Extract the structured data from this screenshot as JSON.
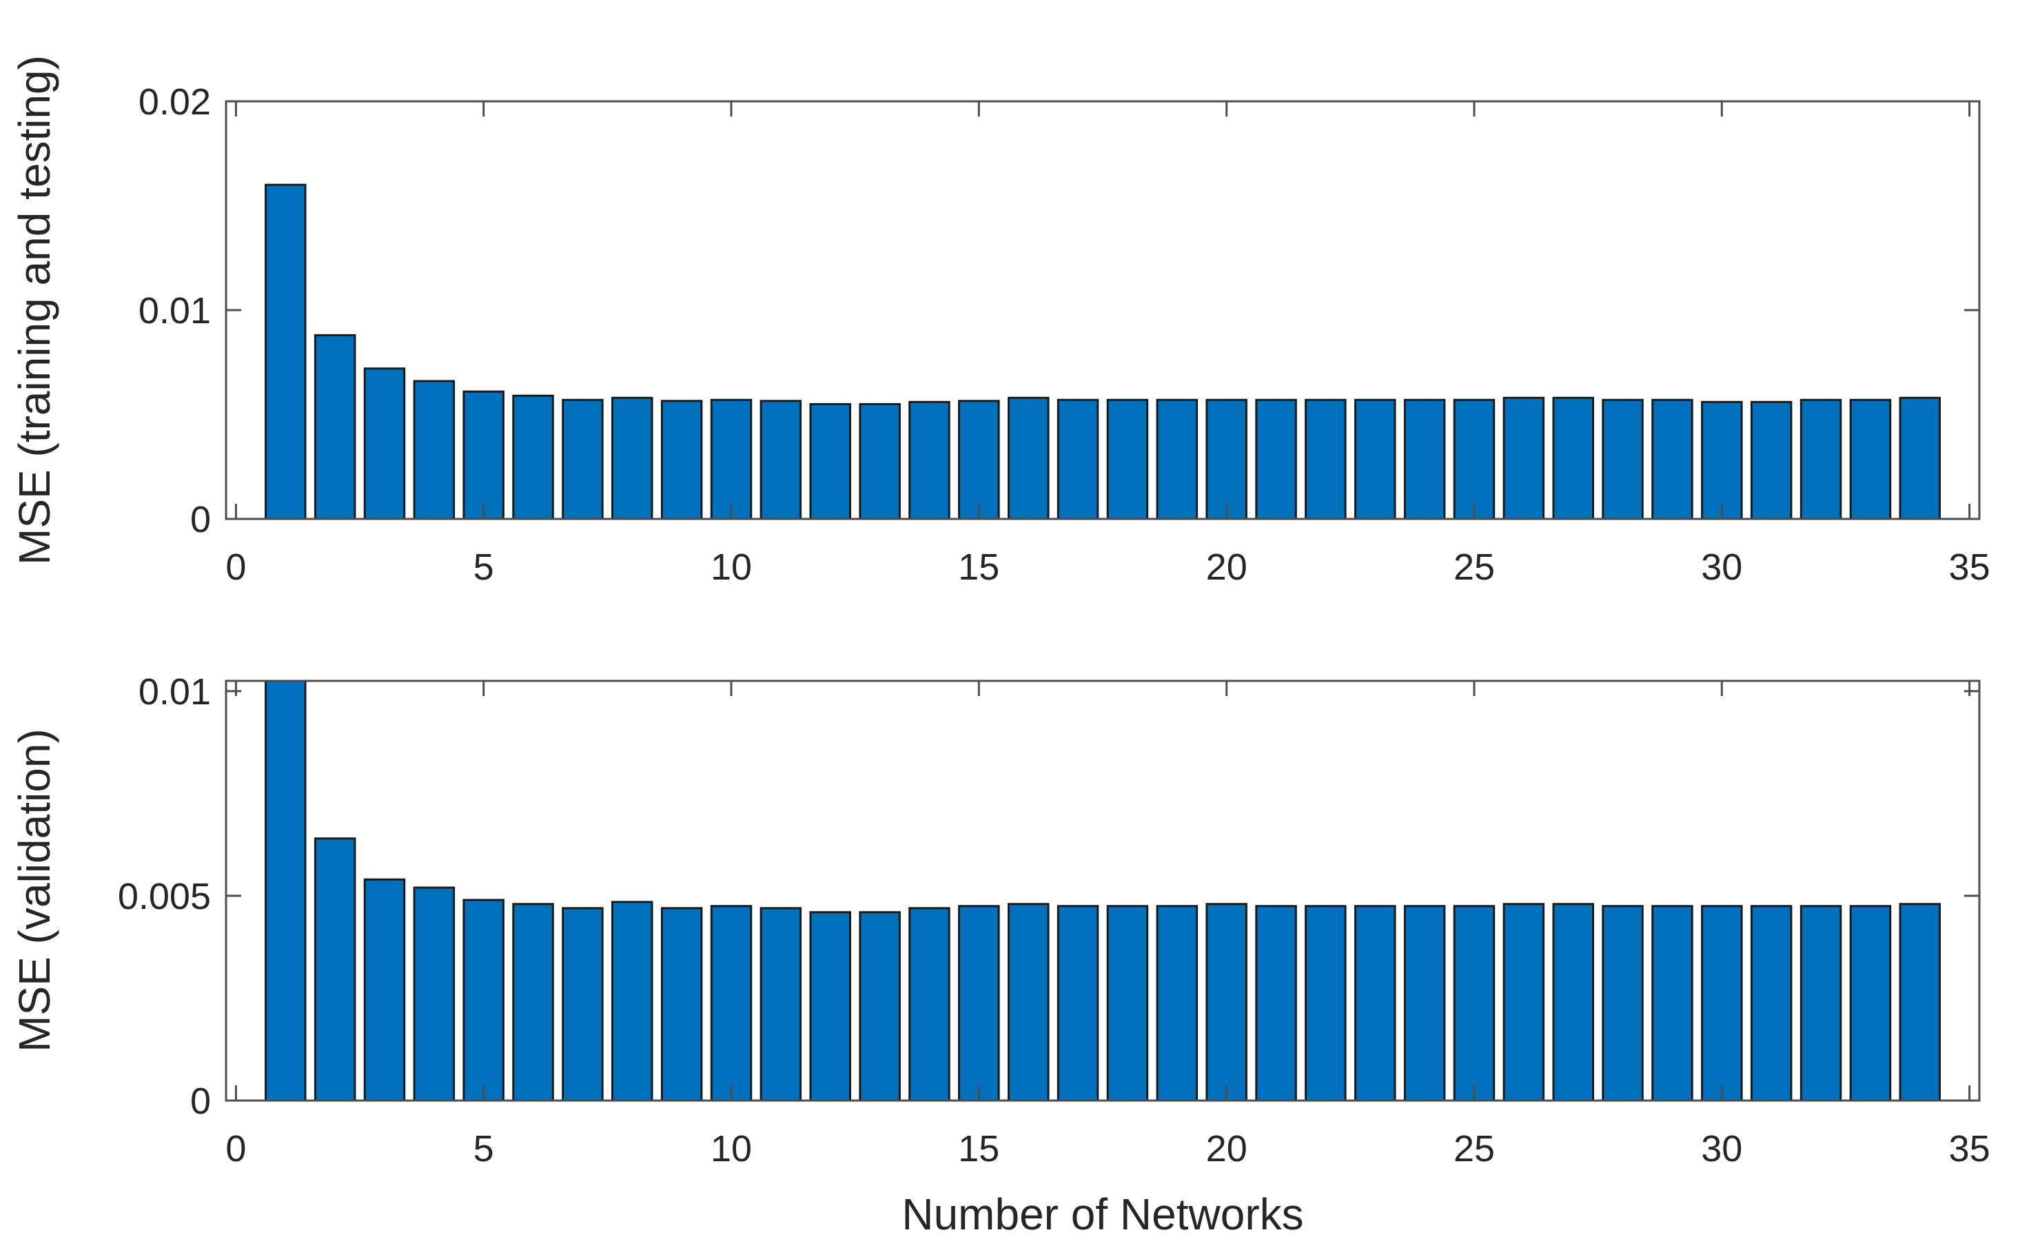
{
  "figure": {
    "background": "#ffffff",
    "text_color": "#262626",
    "axis_color": "#4d4d4d",
    "tick_direction": "in",
    "box": true
  },
  "chart_data": [
    {
      "type": "bar",
      "title": "",
      "xlabel": "",
      "ylabel": "MSE (training and testing)",
      "bar_color": "#0072BD",
      "bar_edge_color": "#1a1a1a",
      "bar_width": 0.8,
      "grid": false,
      "legend": null,
      "xlim": [
        -0.2,
        35.2
      ],
      "ylim": [
        0,
        0.02
      ],
      "xticks": [
        0,
        5,
        10,
        15,
        20,
        25,
        30,
        35
      ],
      "xtick_labels": [
        "0",
        "5",
        "10",
        "15",
        "20",
        "25",
        "30",
        "35"
      ],
      "yticks": [
        0,
        0.01,
        0.02
      ],
      "ytick_labels": [
        "0",
        "0.01",
        "0.02"
      ],
      "x": [
        1,
        2,
        3,
        4,
        5,
        6,
        7,
        8,
        9,
        10,
        11,
        12,
        13,
        14,
        15,
        16,
        17,
        18,
        19,
        20,
        21,
        22,
        23,
        24,
        25,
        26,
        27,
        28,
        29,
        30,
        31,
        32,
        33,
        34
      ],
      "values": [
        0.016,
        0.0088,
        0.0072,
        0.0066,
        0.0061,
        0.0059,
        0.0057,
        0.0058,
        0.00565,
        0.0057,
        0.00565,
        0.0055,
        0.0055,
        0.0056,
        0.00565,
        0.0058,
        0.0057,
        0.0057,
        0.0057,
        0.0057,
        0.0057,
        0.0057,
        0.0057,
        0.0057,
        0.0057,
        0.0058,
        0.0058,
        0.0057,
        0.0057,
        0.0056,
        0.0056,
        0.0057,
        0.0057,
        0.0058
      ]
    },
    {
      "type": "bar",
      "title": "",
      "xlabel": "Number of Networks",
      "ylabel": "MSE (validation)",
      "bar_color": "#0072BD",
      "bar_edge_color": "#1a1a1a",
      "bar_width": 0.8,
      "grid": false,
      "legend": null,
      "xlim": [
        -0.2,
        35.2
      ],
      "ylim": [
        0,
        0.01025
      ],
      "xticks": [
        0,
        5,
        10,
        15,
        20,
        25,
        30,
        35
      ],
      "xtick_labels": [
        "0",
        "5",
        "10",
        "15",
        "20",
        "25",
        "30",
        "35"
      ],
      "yticks": [
        0,
        0.005,
        0.01
      ],
      "ytick_labels": [
        "0",
        "0.005",
        "0.01"
      ],
      "x": [
        1,
        2,
        3,
        4,
        5,
        6,
        7,
        8,
        9,
        10,
        11,
        12,
        13,
        14,
        15,
        16,
        17,
        18,
        19,
        20,
        21,
        22,
        23,
        24,
        25,
        26,
        27,
        28,
        29,
        30,
        31,
        32,
        33,
        34
      ],
      "values": [
        0.0103,
        0.0064,
        0.0054,
        0.0052,
        0.0049,
        0.0048,
        0.0047,
        0.00485,
        0.0047,
        0.00475,
        0.0047,
        0.0046,
        0.0046,
        0.0047,
        0.00475,
        0.0048,
        0.00475,
        0.00475,
        0.00475,
        0.0048,
        0.00475,
        0.00475,
        0.00475,
        0.00475,
        0.00475,
        0.0048,
        0.0048,
        0.00475,
        0.00475,
        0.00475,
        0.00475,
        0.00475,
        0.00475,
        0.0048
      ]
    }
  ]
}
